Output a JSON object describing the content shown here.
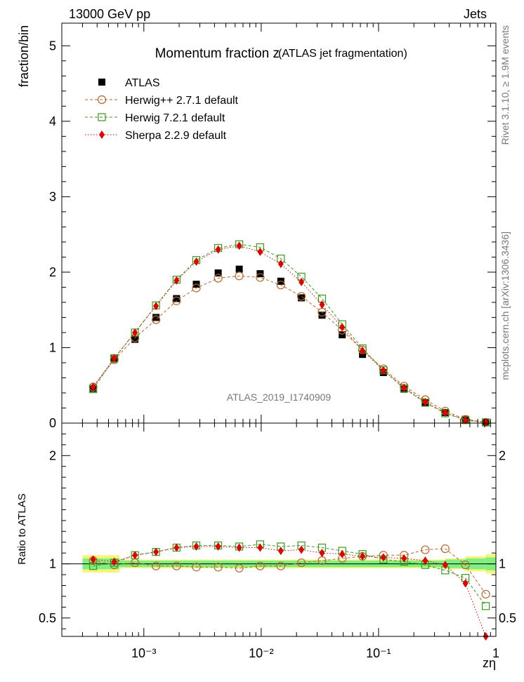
{
  "header": {
    "left": "13000 GeV pp",
    "right": "Jets"
  },
  "side_text": {
    "rivet": "Rivet 3.1.10, ≥ 1.9M events",
    "mcplots": "mcplots.cern.ch [arXiv:1306.3436]"
  },
  "watermark": "ATLAS_2019_I1740909",
  "colors": {
    "atlas": "#000000",
    "herwigpp": "#b8652a",
    "herwig7": "#3a9a1a",
    "sherpa": "#e00000",
    "band_inner": "#7ff07f",
    "band_outer": "#f5f57a"
  },
  "chart_data": [
    {
      "type": "line",
      "title": "Momentum fraction z",
      "subtitle": "(ATLAS jet fragmentation)",
      "ylabel": "fraction/bin",
      "xlabel": "",
      "xscale": "log",
      "xlim": [
        0.0002,
        1.0
      ],
      "ylim": [
        0,
        5.3
      ],
      "yticks": [
        0,
        1,
        2,
        3,
        4,
        5
      ],
      "legend_position": "top-left",
      "x": [
        0.00037,
        0.00056,
        0.00084,
        0.00127,
        0.0019,
        0.0028,
        0.0043,
        0.0065,
        0.0098,
        0.0147,
        0.022,
        0.033,
        0.049,
        0.073,
        0.11,
        0.165,
        0.25,
        0.37,
        0.55,
        0.82
      ],
      "series": [
        {
          "name": "ATLAS",
          "marker": "filled-square",
          "values": [
            0.46,
            0.85,
            1.11,
            1.4,
            1.65,
            1.84,
            1.99,
            2.04,
            1.98,
            1.88,
            1.66,
            1.43,
            1.17,
            0.91,
            0.67,
            0.45,
            0.27,
            0.14,
            0.05,
            0.01
          ]
        },
        {
          "name": "Herwig++ 2.7.1 default",
          "marker": "open-circle",
          "values": [
            0.48,
            0.84,
            1.13,
            1.37,
            1.62,
            1.79,
            1.92,
            1.95,
            1.93,
            1.83,
            1.68,
            1.47,
            1.23,
            0.97,
            0.72,
            0.49,
            0.31,
            0.16,
            0.05,
            0.01
          ]
        },
        {
          "name": "Herwig 7.2.1 default",
          "marker": "open-square",
          "values": [
            0.45,
            0.86,
            1.2,
            1.56,
            1.9,
            2.16,
            2.32,
            2.37,
            2.33,
            2.18,
            1.94,
            1.65,
            1.31,
            0.99,
            0.7,
            0.46,
            0.27,
            0.13,
            0.04,
            0.01
          ]
        },
        {
          "name": "Sherpa 2.2.9 default",
          "marker": "filled-diamond",
          "values": [
            0.48,
            0.86,
            1.2,
            1.55,
            1.89,
            2.14,
            2.3,
            2.35,
            2.27,
            2.11,
            1.87,
            1.57,
            1.27,
            0.96,
            0.7,
            0.47,
            0.28,
            0.14,
            0.04,
            0.01
          ]
        }
      ]
    },
    {
      "type": "line",
      "ylabel": "Ratio to ATLAS",
      "xlabel": "zη",
      "xscale": "log",
      "xlim": [
        0.0002,
        1.0
      ],
      "ylim": [
        0.33,
        2.3
      ],
      "yticks": [
        0.5,
        1,
        2
      ],
      "xtick_labels": [
        "10⁻³",
        "10⁻²",
        "10⁻¹",
        "1"
      ],
      "band": {
        "x_edges": [
          0.0003,
          0.00062,
          0.25,
          0.37,
          0.55,
          0.82,
          1.0
        ],
        "inner": [
          0.05,
          0.03,
          0.03,
          0.04,
          0.05,
          0.06
        ],
        "outer": [
          0.08,
          0.04,
          0.04,
          0.05,
          0.07,
          0.09
        ]
      },
      "x": [
        0.00037,
        0.00056,
        0.00084,
        0.00127,
        0.0019,
        0.0028,
        0.0043,
        0.0065,
        0.0098,
        0.0147,
        0.022,
        0.033,
        0.049,
        0.073,
        0.11,
        0.165,
        0.25,
        0.37,
        0.55,
        0.82
      ],
      "series": [
        {
          "name": "Herwig++ 2.7.1 default",
          "marker": "open-circle",
          "values": [
            1.03,
            0.99,
            1.01,
            0.98,
            0.98,
            0.97,
            0.97,
            0.96,
            0.98,
            0.98,
            1.01,
            1.03,
            1.05,
            1.07,
            1.08,
            1.08,
            1.13,
            1.14,
            0.99,
            0.72
          ]
        },
        {
          "name": "Herwig 7.2.1 default",
          "marker": "open-square",
          "values": [
            0.98,
            1.01,
            1.08,
            1.11,
            1.15,
            1.17,
            1.17,
            1.16,
            1.18,
            1.16,
            1.17,
            1.15,
            1.12,
            1.09,
            1.04,
            1.02,
            0.99,
            0.94,
            0.87,
            0.61
          ]
        },
        {
          "name": "Sherpa 2.2.9 default",
          "marker": "filled-diamond",
          "values": [
            1.04,
            1.02,
            1.08,
            1.11,
            1.15,
            1.16,
            1.16,
            1.15,
            1.15,
            1.12,
            1.13,
            1.1,
            1.09,
            1.07,
            1.06,
            1.05,
            1.03,
            0.99,
            0.82,
            0.33
          ]
        }
      ]
    }
  ]
}
